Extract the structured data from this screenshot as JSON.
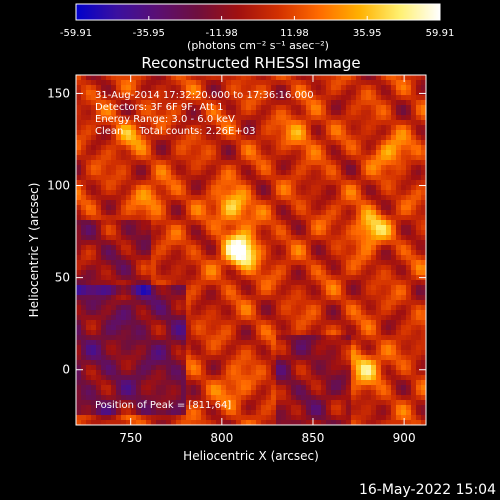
{
  "chart_data": {
    "type": "heatmap",
    "title": "Reconstructed RHESSI Image",
    "xlabel": "Heliocentric X (arcsec)",
    "ylabel": "Heliocentric Y (arcsec)",
    "xlim": [
      720,
      912
    ],
    "ylim": [
      -30,
      160
    ],
    "x_ticks": [
      750,
      800,
      850,
      900
    ],
    "y_ticks": [
      0,
      50,
      100,
      150
    ],
    "colorbar": {
      "ticks": [
        "-59.91",
        "-35.95",
        "-11.98",
        "11.98",
        "35.95",
        "59.91"
      ],
      "range": [
        -59.91,
        59.91
      ],
      "units_text": "(photons cm⁻² s⁻¹ asec⁻²)",
      "stops": [
        "#0000cc",
        "#3a10a0",
        "#5a0f74",
        "#6e0f3e",
        "#a01010",
        "#d23000",
        "#ff6a00",
        "#ffb000",
        "#fff070",
        "#ffffff"
      ]
    },
    "annotations": [
      "31-Aug-2014 17:32:20.000 to 17:36:16.000",
      "Detectors: 3F 6F 9F, Att 1",
      "Energy Range: 3.0 - 6.0 keV",
      "Clean     Total counts: 2.26E+03"
    ],
    "peak_label": "Position of Peak = [811,64]",
    "sources": [
      {
        "x": 811,
        "y": 64,
        "level": 59.91
      },
      {
        "x": 806,
        "y": 88,
        "level": 40
      },
      {
        "x": 881,
        "y": 77,
        "level": 38
      },
      {
        "x": 878,
        "y": 2,
        "level": 35
      },
      {
        "x": 893,
        "y": 118,
        "level": 25
      },
      {
        "x": 843,
        "y": 128,
        "level": 22
      },
      {
        "x": 749,
        "y": 128,
        "level": 20
      },
      {
        "x": 762,
        "y": 93,
        "level": 18
      },
      {
        "x": 808,
        "y": -10,
        "level": 18
      }
    ]
  },
  "footer": {
    "date": "16-May-2022 15:04"
  }
}
